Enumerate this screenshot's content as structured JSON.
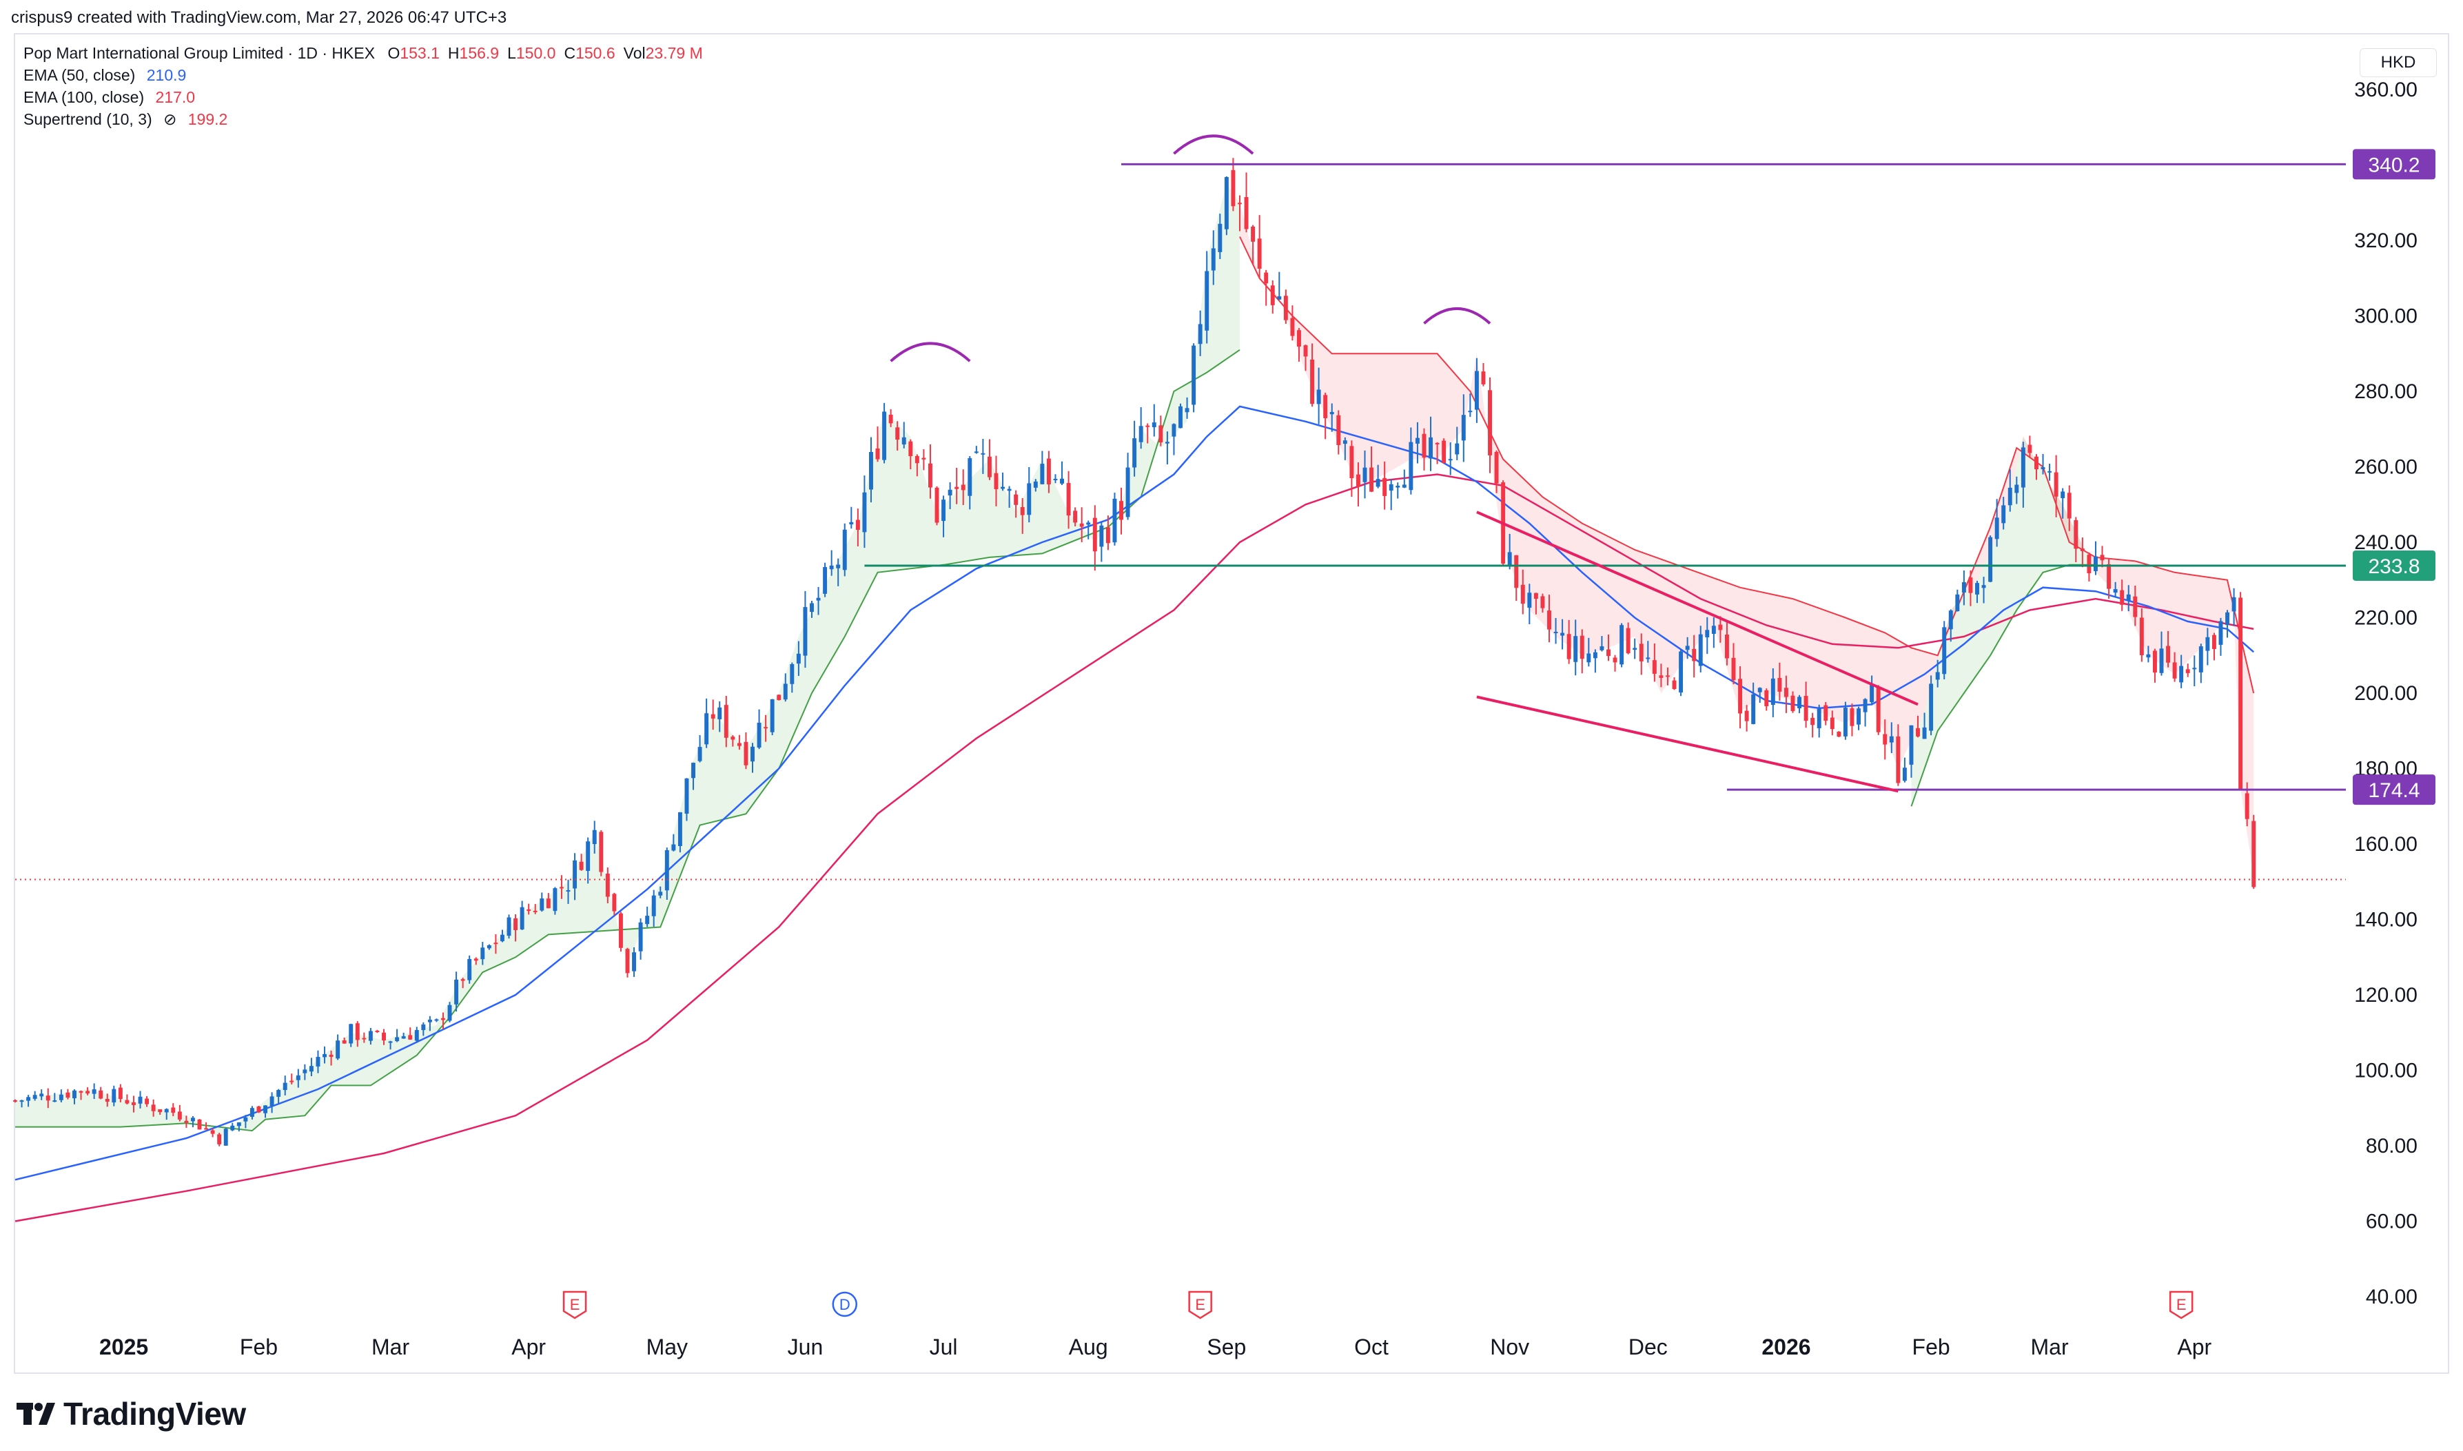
{
  "header": {
    "created_by": "crispus9 created with TradingView.com, Mar 27, 2026 06:47 UTC+3"
  },
  "legend": {
    "symbol": "Pop Mart International Group Limited · 1D · HKEX",
    "ohlc": [
      {
        "k": "O",
        "v": "153.1"
      },
      {
        "k": "H",
        "v": "156.9"
      },
      {
        "k": "L",
        "v": "150.0"
      },
      {
        "k": "C",
        "v": "150.6"
      },
      {
        "k": "Vol",
        "v": "23.79 M"
      }
    ],
    "ema50_label": "EMA (50, close)",
    "ema50_value": "210.9",
    "ema50_color": "#2962ff",
    "ema100_label": "EMA (100, close)",
    "ema100_value": "217.0",
    "ema100_color": "#f23645",
    "supertrend_label": "Supertrend (10, 3)",
    "supertrend_icon": "eye-crossed-icon",
    "supertrend_value": "199.2",
    "supertrend_color": "#f23645"
  },
  "currency": "HKD",
  "footer": {
    "brand": "TradingView",
    "logo_icon": "tradingview-logo-icon"
  },
  "chart_data": {
    "type": "candlestick",
    "title": "Pop Mart International Group Limited · 1D · HKEX",
    "ylim": [
      30,
      370
    ],
    "y_ticks": [
      40,
      60,
      80,
      100,
      120,
      140,
      160,
      180,
      200,
      220,
      240,
      260,
      280,
      300,
      320,
      340,
      360
    ],
    "y_tick_labels": [
      "40.00",
      "60.00",
      "80.00",
      "100.00",
      "120.00",
      "140.00",
      "160.00",
      "180.00",
      "200.00",
      "220.00",
      "240.00",
      "260.00",
      "280.00",
      "300.00",
      "320.00",
      "340.00",
      "360.00"
    ],
    "x_ticks": [
      {
        "label": "2025",
        "t": 0.5,
        "bold": true
      },
      {
        "label": "Feb",
        "t": 21
      },
      {
        "label": "Mar",
        "t": 41
      },
      {
        "label": "Apr",
        "t": 62
      },
      {
        "label": "May",
        "t": 83
      },
      {
        "label": "Jun",
        "t": 104
      },
      {
        "label": "Jul",
        "t": 125
      },
      {
        "label": "Aug",
        "t": 147
      },
      {
        "label": "Sep",
        "t": 168
      },
      {
        "label": "Oct",
        "t": 190
      },
      {
        "label": "Nov",
        "t": 211
      },
      {
        "label": "Dec",
        "t": 232
      },
      {
        "label": "2026",
        "t": 253,
        "bold": true
      },
      {
        "label": "Feb",
        "t": 275
      },
      {
        "label": "Mar",
        "t": 293
      },
      {
        "label": "Apr",
        "t": 315
      }
    ],
    "t_range": [
      -16,
      338
    ],
    "price_labels": [
      {
        "value": 340.2,
        "label": "340.2",
        "color": "#7e3bb5"
      },
      {
        "value": 233.8,
        "label": "233.8",
        "color": "#22a07a"
      },
      {
        "value": 174.4,
        "label": "174.4",
        "color": "#7e3bb5"
      }
    ],
    "horizontal_lines": [
      {
        "y": 340.2,
        "t0": 152,
        "t1": 324,
        "color": "#7e3bb5"
      },
      {
        "y": 233.8,
        "t0": 113,
        "t1": 324,
        "color": "#0f8a6a"
      },
      {
        "y": 174.4,
        "t0": 244,
        "t1": 324,
        "color": "#7e3bb5"
      }
    ],
    "last_price": 150.6,
    "trend_lines": [
      {
        "t0": 206,
        "y0": 248,
        "t1": 273,
        "y1": 197,
        "color": "#e91e63"
      },
      {
        "t0": 206,
        "y0": 199,
        "t1": 270,
        "y1": 174,
        "color": "#e91e63"
      }
    ],
    "arcs": [
      {
        "t": 123,
        "y": 288,
        "half_width": 6,
        "color": "#9c27b0"
      },
      {
        "t": 166,
        "y": 343,
        "half_width": 6,
        "color": "#9c27b0"
      },
      {
        "t": 203,
        "y": 298,
        "half_width": 5,
        "color": "#9c27b0"
      }
    ],
    "event_markers": [
      {
        "t": 69,
        "label": "E",
        "type": "earnings"
      },
      {
        "t": 110,
        "label": "D",
        "type": "dividend"
      },
      {
        "t": 164,
        "label": "E",
        "type": "earnings"
      },
      {
        "t": 313,
        "label": "E",
        "type": "earnings"
      }
    ],
    "close_keypoints": [
      [
        -16,
        92
      ],
      [
        -5,
        95
      ],
      [
        10,
        88
      ],
      [
        15,
        82
      ],
      [
        22,
        92
      ],
      [
        28,
        100
      ],
      [
        35,
        110
      ],
      [
        40,
        108
      ],
      [
        48,
        112
      ],
      [
        52,
        125
      ],
      [
        60,
        140
      ],
      [
        64,
        145
      ],
      [
        68,
        150
      ],
      [
        72,
        163
      ],
      [
        77,
        128
      ],
      [
        82,
        150
      ],
      [
        87,
        182
      ],
      [
        90,
        195
      ],
      [
        95,
        185
      ],
      [
        100,
        200
      ],
      [
        103,
        215
      ],
      [
        108,
        232
      ],
      [
        112,
        245
      ],
      [
        116,
        275
      ],
      [
        120,
        268
      ],
      [
        124,
        248
      ],
      [
        128,
        255
      ],
      [
        132,
        262
      ],
      [
        136,
        248
      ],
      [
        140,
        262
      ],
      [
        144,
        248
      ],
      [
        148,
        240
      ],
      [
        152,
        250
      ],
      [
        155,
        270
      ],
      [
        158,
        265
      ],
      [
        162,
        272
      ],
      [
        165,
        315
      ],
      [
        168,
        335
      ],
      [
        170,
        330
      ],
      [
        173,
        310
      ],
      [
        176,
        305
      ],
      [
        180,
        285
      ],
      [
        184,
        270
      ],
      [
        188,
        255
      ],
      [
        192,
        258
      ],
      [
        196,
        262
      ],
      [
        200,
        262
      ],
      [
        204,
        270
      ],
      [
        206,
        290
      ],
      [
        210,
        238
      ],
      [
        214,
        222
      ],
      [
        218,
        215
      ],
      [
        222,
        210
      ],
      [
        226,
        212
      ],
      [
        230,
        215
      ],
      [
        234,
        200
      ],
      [
        238,
        210
      ],
      [
        242,
        218
      ],
      [
        246,
        195
      ],
      [
        250,
        200
      ],
      [
        254,
        198
      ],
      [
        258,
        195
      ],
      [
        262,
        192
      ],
      [
        266,
        198
      ],
      [
        270,
        180
      ],
      [
        274,
        195
      ],
      [
        278,
        222
      ],
      [
        282,
        230
      ],
      [
        286,
        245
      ],
      [
        289,
        268
      ],
      [
        292,
        258
      ],
      [
        295,
        250
      ],
      [
        300,
        232
      ],
      [
        304,
        225
      ],
      [
        308,
        210
      ],
      [
        312,
        205
      ],
      [
        316,
        212
      ],
      [
        319,
        218
      ],
      [
        321,
        222
      ],
      [
        322,
        175
      ],
      [
        324,
        151
      ]
    ],
    "ema50_keypoints": [
      [
        -16,
        71
      ],
      [
        10,
        82
      ],
      [
        30,
        95
      ],
      [
        60,
        120
      ],
      [
        80,
        148
      ],
      [
        100,
        180
      ],
      [
        110,
        202
      ],
      [
        120,
        222
      ],
      [
        130,
        233
      ],
      [
        140,
        240
      ],
      [
        150,
        246
      ],
      [
        160,
        258
      ],
      [
        165,
        268
      ],
      [
        170,
        276
      ],
      [
        180,
        272
      ],
      [
        190,
        267
      ],
      [
        200,
        262
      ],
      [
        206,
        256
      ],
      [
        214,
        245
      ],
      [
        222,
        232
      ],
      [
        230,
        220
      ],
      [
        240,
        208
      ],
      [
        250,
        198
      ],
      [
        258,
        196
      ],
      [
        266,
        197
      ],
      [
        274,
        205
      ],
      [
        280,
        213
      ],
      [
        286,
        222
      ],
      [
        292,
        228
      ],
      [
        300,
        227
      ],
      [
        308,
        223
      ],
      [
        314,
        219
      ],
      [
        320,
        217
      ],
      [
        324,
        210.9
      ]
    ],
    "ema100_keypoints": [
      [
        -16,
        60
      ],
      [
        10,
        68
      ],
      [
        40,
        78
      ],
      [
        60,
        88
      ],
      [
        80,
        108
      ],
      [
        100,
        138
      ],
      [
        115,
        168
      ],
      [
        130,
        188
      ],
      [
        145,
        205
      ],
      [
        160,
        222
      ],
      [
        170,
        240
      ],
      [
        180,
        250
      ],
      [
        190,
        256
      ],
      [
        200,
        258
      ],
      [
        210,
        255
      ],
      [
        220,
        245
      ],
      [
        230,
        235
      ],
      [
        240,
        225
      ],
      [
        250,
        218
      ],
      [
        260,
        213
      ],
      [
        270,
        212
      ],
      [
        280,
        215
      ],
      [
        290,
        222
      ],
      [
        300,
        225
      ],
      [
        310,
        222
      ],
      [
        318,
        219
      ],
      [
        324,
        217
      ]
    ],
    "supertrend_up": [
      [
        -16,
        85
      ],
      [
        0,
        85
      ],
      [
        10,
        86
      ],
      [
        20,
        84
      ],
      [
        22,
        87
      ],
      [
        28,
        88
      ],
      [
        32,
        96
      ],
      [
        38,
        96
      ],
      [
        45,
        104
      ],
      [
        50,
        114
      ],
      [
        55,
        126
      ],
      [
        60,
        130
      ],
      [
        65,
        136
      ],
      [
        82,
        138
      ],
      [
        88,
        165
      ],
      [
        95,
        168
      ],
      [
        100,
        180
      ],
      [
        105,
        200
      ],
      [
        110,
        215
      ],
      [
        115,
        232
      ],
      [
        125,
        234
      ],
      [
        132,
        236
      ],
      [
        140,
        237
      ],
      [
        150,
        244
      ],
      [
        155,
        252
      ],
      [
        160,
        280
      ],
      [
        165,
        285
      ],
      [
        170,
        291
      ]
    ],
    "supertrend_down": [
      [
        170,
        321
      ],
      [
        173,
        310
      ],
      [
        178,
        300
      ],
      [
        184,
        290
      ],
      [
        190,
        290
      ],
      [
        200,
        290
      ],
      [
        205,
        280
      ],
      [
        210,
        262
      ],
      [
        216,
        252
      ],
      [
        222,
        245
      ],
      [
        230,
        238
      ],
      [
        238,
        233
      ],
      [
        246,
        228
      ],
      [
        254,
        225
      ],
      [
        262,
        220
      ],
      [
        268,
        216
      ],
      [
        272,
        212
      ],
      [
        276,
        210
      ],
      [
        284,
        244
      ],
      [
        288,
        265
      ],
      [
        292,
        260
      ],
      [
        296,
        240
      ],
      [
        300,
        236
      ],
      [
        306,
        235
      ],
      [
        312,
        232
      ],
      [
        320,
        230
      ],
      [
        324,
        200
      ]
    ],
    "supertrend_up_2": [
      [
        272,
        170
      ],
      [
        276,
        190
      ],
      [
        280,
        200
      ],
      [
        284,
        210
      ],
      [
        288,
        222
      ],
      [
        292,
        232
      ],
      [
        296,
        234
      ],
      [
        300,
        234
      ]
    ]
  }
}
